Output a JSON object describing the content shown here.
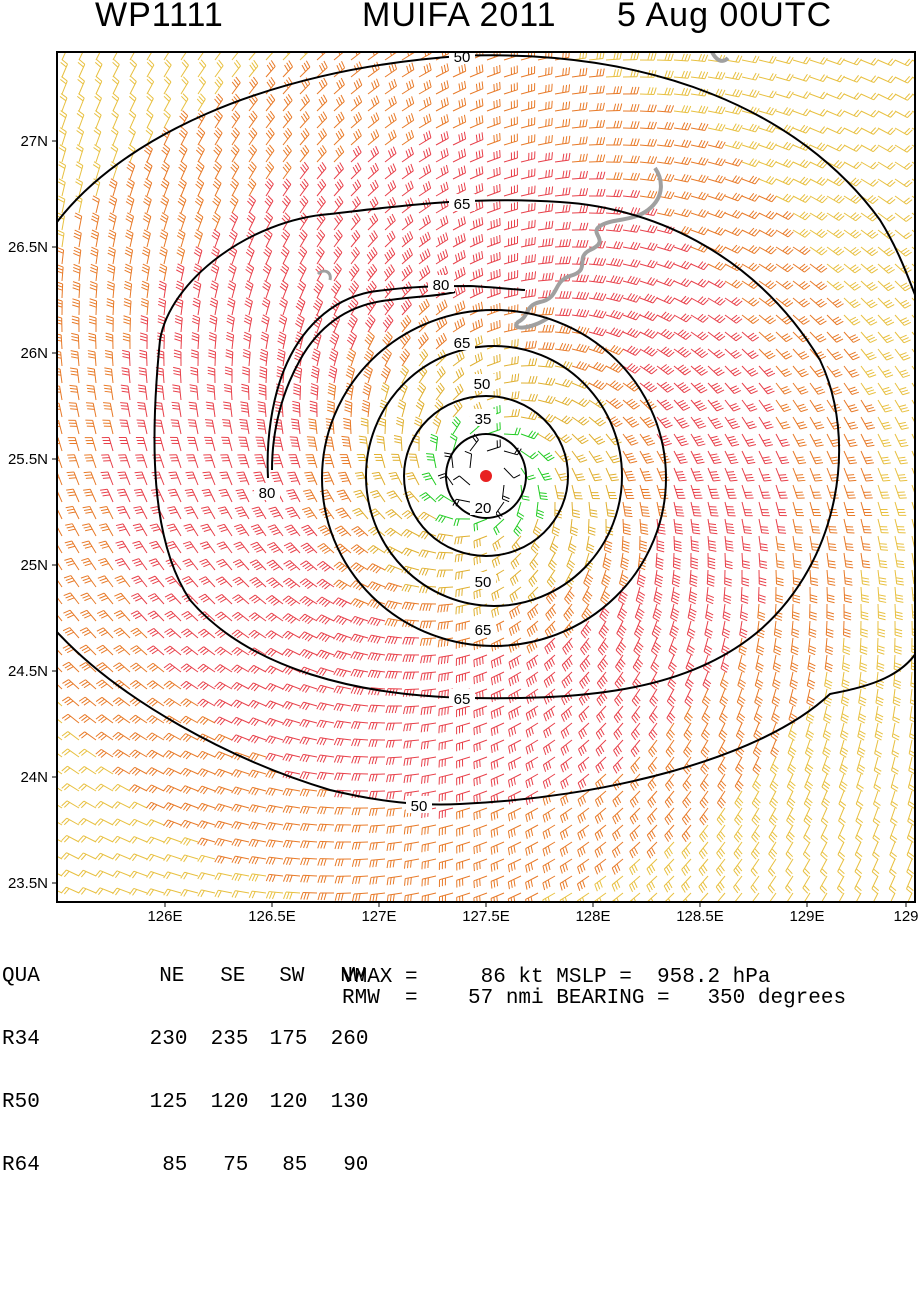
{
  "header": {
    "storm_id": "WP1111",
    "storm_name_year": "MUIFA 2011",
    "datetime": "5 Aug 00UTC"
  },
  "map": {
    "lat_ticks": [
      "23.5N",
      "24N",
      "24.5N",
      "25N",
      "25.5N",
      "26N",
      "26.5N",
      "27N"
    ],
    "lon_ticks": [
      "126E",
      "126.5E",
      "127E",
      "127.5E",
      "128E",
      "128.5E",
      "129E",
      "129"
    ],
    "center": {
      "lon": 127.5,
      "lat": 25.42
    },
    "contour_labels": [
      "50",
      "65",
      "80",
      "65",
      "50",
      "35",
      "20",
      "50",
      "65",
      "65",
      "50",
      "80"
    ],
    "colors": {
      "wind_20_35": "#22cc22",
      "wind_35_50": "#e0b030",
      "wind_50_65": "#e87a28",
      "wind_65_plus": "#e8404a",
      "wind_light": "#e8c040",
      "coastline": "#a0a0a0",
      "contour": "#000000",
      "center_marker": "#e82020"
    }
  },
  "table": {
    "headers": [
      "QUA",
      "NE",
      "SE",
      "SW",
      "NW"
    ],
    "rows": [
      {
        "label": "R34",
        "values": [
          "230",
          "235",
          "175",
          "260"
        ]
      },
      {
        "label": "R50",
        "values": [
          "125",
          "120",
          "120",
          "130"
        ]
      },
      {
        "label": "R64",
        "values": [
          "85",
          "75",
          "85",
          "90"
        ]
      }
    ]
  },
  "summary": {
    "vmax_line": "VMAX =     86 kt MSLP =  958.2 hPa",
    "rmw_line": "RMW  =    57 nmi BEARING =   350 degrees"
  }
}
